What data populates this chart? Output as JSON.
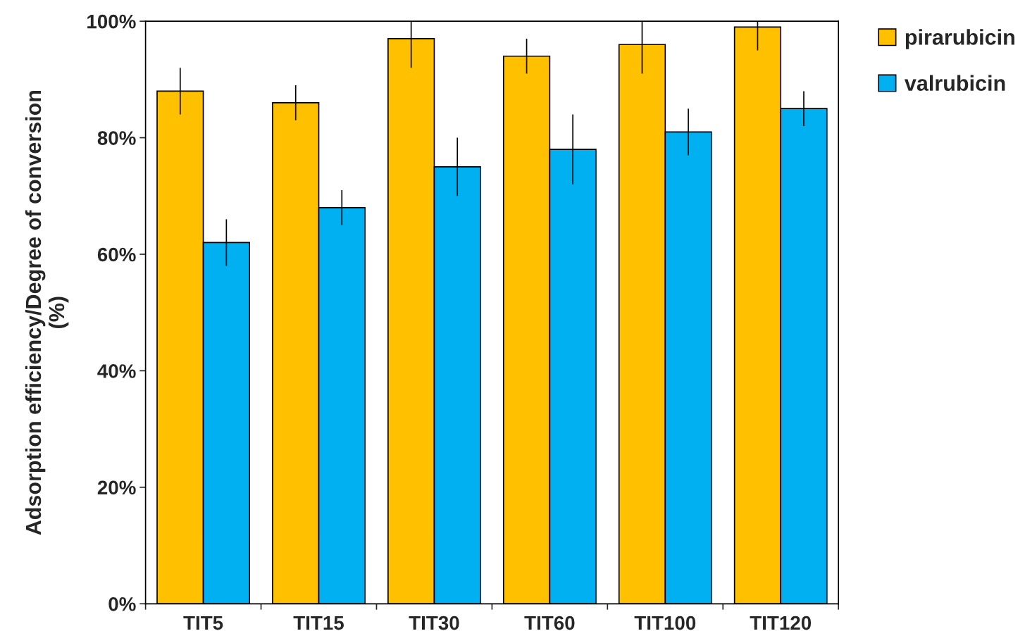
{
  "chart_data": {
    "type": "bar",
    "ylabel": "Adsorption efficiency/Degree of conversion\n(%)",
    "categories": [
      "TIT5",
      "TIT15",
      "TIT30",
      "TIT60",
      "TIT100",
      "TIT120"
    ],
    "series": [
      {
        "name": "pirarubicin",
        "color": "#ffc000",
        "values": [
          88,
          86,
          97,
          94,
          96,
          99
        ],
        "errors": [
          4,
          3,
          [
            92,
            100
          ],
          3,
          [
            91,
            100
          ],
          [
            95,
            100
          ]
        ]
      },
      {
        "name": "valrubicin",
        "color": "#00b0f0",
        "values": [
          62,
          68,
          75,
          78,
          81,
          85
        ],
        "errors": [
          4,
          3,
          5,
          6,
          4,
          3
        ]
      }
    ],
    "ylim": [
      0,
      100
    ],
    "yticks": [
      {
        "value": 0,
        "label": "0%"
      },
      {
        "value": 20,
        "label": "20%"
      },
      {
        "value": 40,
        "label": "40%"
      },
      {
        "value": 60,
        "label": "60%"
      },
      {
        "value": 80,
        "label": "80%"
      },
      {
        "value": 100,
        "label": "100%"
      }
    ],
    "grid": false,
    "legend": "top right"
  }
}
